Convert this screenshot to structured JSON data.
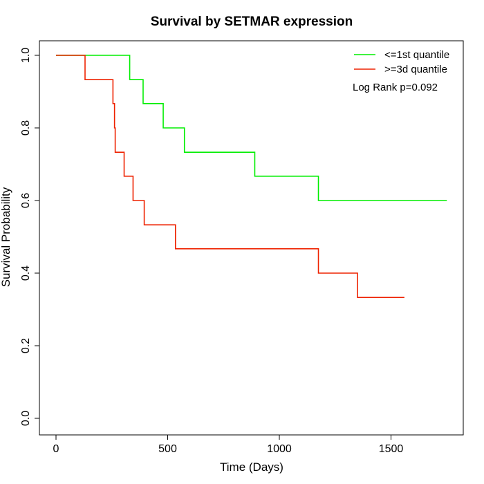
{
  "chart_data": {
    "type": "line",
    "subtype": "kaplan-meier step",
    "title": "Survival by SETMAR expression",
    "xlabel": "Time (Days)",
    "ylabel": "Survival Probability",
    "xlim": [
      0,
      1750
    ],
    "ylim": [
      0,
      1.0
    ],
    "xticks": [
      0,
      500,
      1000,
      1500
    ],
    "xtick_labels": [
      "0",
      "500",
      "1000",
      "1500"
    ],
    "yticks": [
      0.0,
      0.2,
      0.4,
      0.6,
      0.8,
      1.0
    ],
    "ytick_labels": [
      "0.0",
      "0.2",
      "0.4",
      "0.6",
      "0.8",
      "1.0"
    ],
    "grid": false,
    "legend_position": "top-right",
    "annotation": "Log Rank p=0.092",
    "series": [
      {
        "name": "<=1st quantile",
        "color": "#00ee00",
        "x": [
          0,
          330,
          390,
          480,
          575,
          890,
          1175,
          1750
        ],
        "y": [
          1.0,
          0.933,
          0.867,
          0.8,
          0.733,
          0.667,
          0.6,
          0.6
        ]
      },
      {
        "name": ">=3d quantile",
        "color": "#ee2200",
        "x": [
          0,
          130,
          255,
          262,
          265,
          305,
          345,
          395,
          535,
          1175,
          1350,
          1560
        ],
        "y": [
          1.0,
          0.933,
          0.867,
          0.8,
          0.733,
          0.667,
          0.6,
          0.533,
          0.467,
          0.4,
          0.333,
          0.333
        ]
      }
    ]
  }
}
